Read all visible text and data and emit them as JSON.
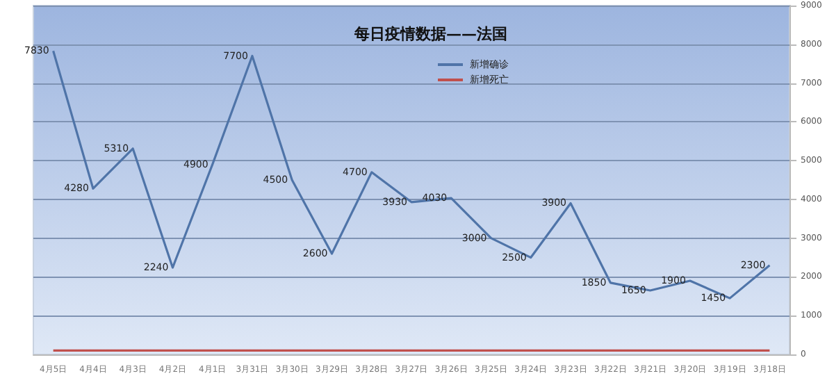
{
  "chart_data": {
    "type": "line",
    "title": "每日疫情数据——法国",
    "categories": [
      "4月5日",
      "4月4日",
      "4月3日",
      "4月2日",
      "4月1日",
      "3月31日",
      "3月30日",
      "3月29日",
      "3月28日",
      "3月27日",
      "3月26日",
      "3月25日",
      "3月24日",
      "3月23日",
      "3月22日",
      "3月21日",
      "3月20日",
      "3月19日",
      "3月18日"
    ],
    "series": [
      {
        "name": "新增确诊",
        "color": "#4f74a8",
        "values": [
          7830,
          4280,
          5310,
          2240,
          4900,
          7700,
          4500,
          2600,
          4700,
          3930,
          4030,
          3000,
          2500,
          3900,
          1850,
          1650,
          1900,
          1450,
          2300
        ],
        "value_labels": [
          "7830",
          "4280",
          "5310",
          "2240",
          "4900",
          "7700",
          "4500",
          "2600",
          "4700",
          "3930",
          "4030",
          "3000",
          "2500",
          "3900",
          "1850",
          "1650",
          "1900",
          "1450",
          "2300"
        ]
      },
      {
        "name": "新增死亡",
        "color": "#c0504d",
        "values": [
          100,
          100,
          100,
          100,
          100,
          100,
          100,
          100,
          100,
          100,
          100,
          100,
          100,
          100,
          100,
          100,
          100,
          100,
          100
        ]
      }
    ],
    "ylim": [
      0,
      9000
    ],
    "yticks": [
      0,
      1000,
      2000,
      3000,
      4000,
      5000,
      6000,
      7000,
      8000,
      9000
    ],
    "grid": "y",
    "legend": "top right",
    "marker": "none"
  }
}
